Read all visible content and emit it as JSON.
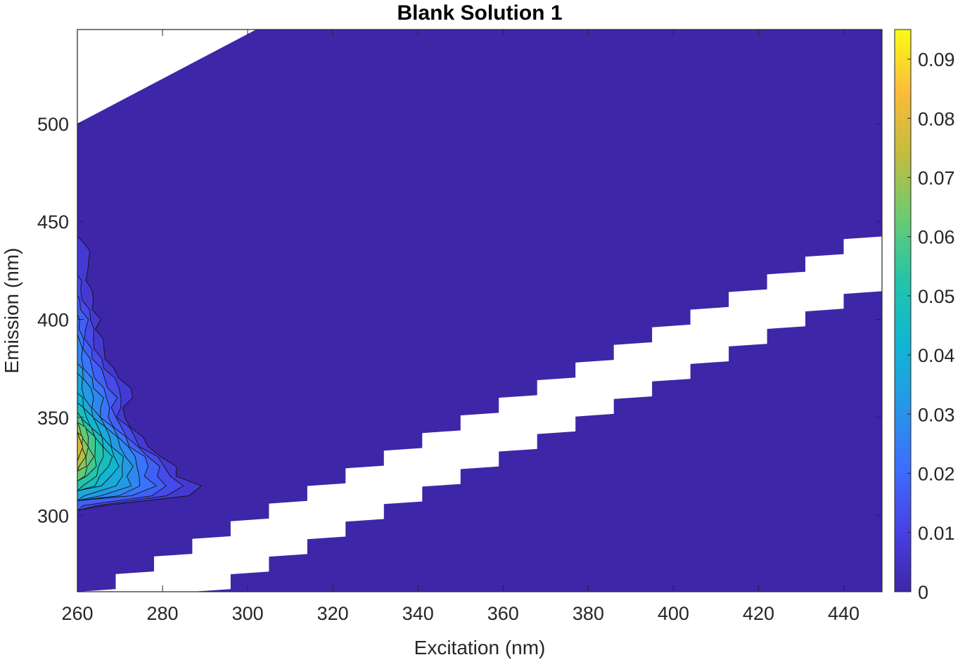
{
  "chart_data": {
    "type": "heatmap",
    "subtype": "filled-contour",
    "title": "Blank Solution 1",
    "xlabel": "Excitation (nm)",
    "ylabel": "Emission (nm)",
    "xlim": [
      260,
      449
    ],
    "ylim": [
      261,
      548
    ],
    "xticks": [
      260,
      280,
      300,
      320,
      340,
      360,
      380,
      400,
      420,
      440
    ],
    "yticks": [
      300,
      350,
      400,
      450,
      500
    ],
    "colorbar": {
      "min": 0,
      "max": 0.095,
      "ticks": [
        "0",
        "0.01",
        "0.02",
        "0.03",
        "0.04",
        "0.05",
        "0.06",
        "0.07",
        "0.08",
        "0.09"
      ],
      "tick_values": [
        0,
        0.01,
        0.02,
        0.03,
        0.04,
        0.05,
        0.06,
        0.07,
        0.08,
        0.09
      ],
      "colormap": "parula"
    },
    "colormap_stops": [
      "#3e26a8",
      "#4742e5",
      "#3d6ffd",
      "#2598e7",
      "#10b6d2",
      "#24c4a8",
      "#6acb71",
      "#c3bc3e",
      "#fbbc3a",
      "#f9fb15"
    ],
    "background_value": 0,
    "masked_regions": [
      {
        "name": "upper-left-mask",
        "polygon": [
          [
            260,
            548
          ],
          [
            302,
            548
          ],
          [
            260,
            500
          ]
        ]
      },
      {
        "name": "scatter-band-mask",
        "lower_edge": [
          [
            287,
            261
          ],
          [
            449,
            422
          ]
        ],
        "upper_edge": [
          [
            260,
            261
          ],
          [
            449,
            450
          ]
        ]
      }
    ],
    "peak_region": {
      "x_range": [
        260,
        291
      ],
      "y_range": [
        303,
        441
      ],
      "peak_x": 261,
      "peak_y": 333,
      "peak_value": 0.08
    },
    "intensity_profile": {
      "emission": [
        305,
        310,
        315,
        320,
        325,
        330,
        335,
        340,
        345,
        350,
        355,
        360,
        365,
        370,
        375,
        380,
        385,
        390,
        395,
        400,
        405,
        410,
        415,
        420,
        425,
        430,
        435,
        440
      ],
      "peak_value": [
        0.02,
        0.04,
        0.055,
        0.065,
        0.072,
        0.078,
        0.08,
        0.078,
        0.07,
        0.06,
        0.05,
        0.045,
        0.04,
        0.038,
        0.035,
        0.03,
        0.028,
        0.026,
        0.025,
        0.023,
        0.02,
        0.016,
        0.013,
        0.011,
        0.01,
        0.01,
        0.009,
        0.006
      ],
      "extent_x": [
        270,
        291,
        292,
        286,
        285,
        282,
        278,
        276,
        274,
        272,
        273,
        275,
        274,
        272,
        270,
        269,
        268,
        267,
        266,
        267,
        266,
        266,
        265,
        265,
        265,
        268,
        268,
        264
      ]
    },
    "grid": false,
    "legend": "colorbar-right"
  }
}
